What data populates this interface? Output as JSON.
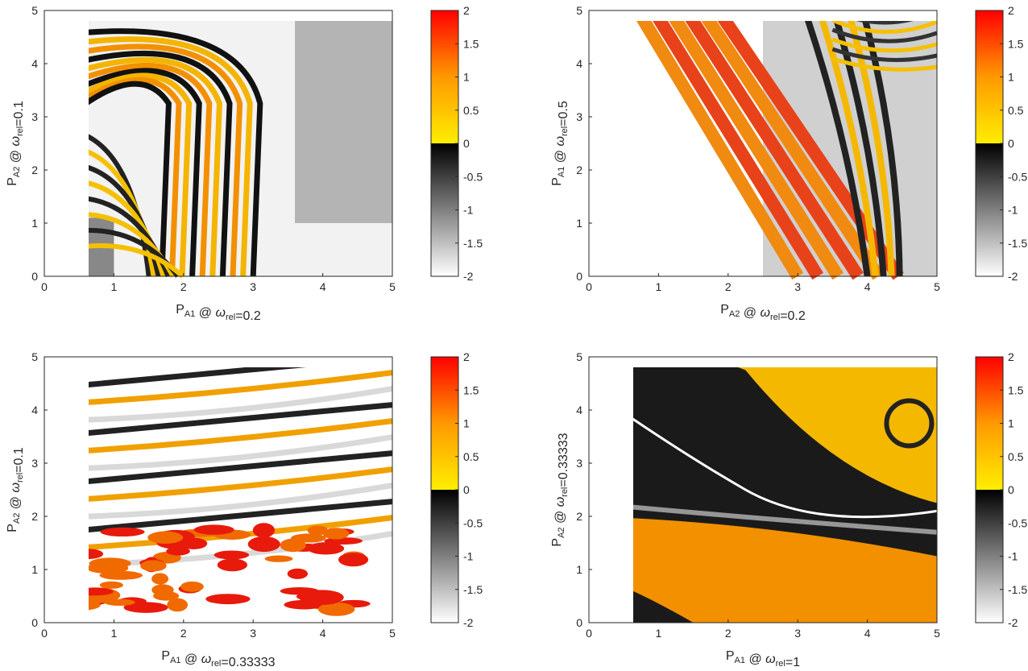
{
  "chart_data": [
    {
      "type": "heatmap",
      "xlabel": {
        "main": "P",
        "sub": "A1",
        "at": " @ ",
        "greek": "ω",
        "greek_sub": "rel",
        "val": "=0.2"
      },
      "ylabel": {
        "main": "P",
        "sub": "A2",
        "at": " @ ",
        "greek": "ω",
        "greek_sub": "rel",
        "val": "=0.1"
      },
      "xlim": [
        0,
        5
      ],
      "ylim": [
        0,
        5
      ],
      "xticks": [
        "0",
        "1",
        "2",
        "3",
        "4",
        "5"
      ],
      "yticks": [
        "0",
        "1",
        "2",
        "3",
        "4",
        "5"
      ],
      "colorbar": {
        "range": [
          -2,
          2
        ],
        "ticks": [
          "2",
          "1.5",
          "1",
          "0.5",
          "0",
          "-0.5",
          "-1",
          "-1.5",
          "-2"
        ]
      }
    },
    {
      "type": "heatmap",
      "xlabel": {
        "main": "P",
        "sub": "A2",
        "at": " @ ",
        "greek": "ω",
        "greek_sub": "rel",
        "val": "=0.2"
      },
      "ylabel": {
        "main": "P",
        "sub": "A1",
        "at": " @ ",
        "greek": "ω",
        "greek_sub": "rel",
        "val": "=0.5"
      },
      "xlim": [
        0,
        5
      ],
      "ylim": [
        0,
        5
      ],
      "xticks": [
        "0",
        "1",
        "2",
        "3",
        "4",
        "5"
      ],
      "yticks": [
        "0",
        "1",
        "2",
        "3",
        "4",
        "5"
      ],
      "colorbar": {
        "range": [
          -2,
          2
        ],
        "ticks": [
          "2",
          "1.5",
          "1",
          "0.5",
          "0",
          "-0.5",
          "-1",
          "-1.5",
          "-2"
        ]
      }
    },
    {
      "type": "heatmap",
      "xlabel": {
        "main": "P",
        "sub": "A1",
        "at": " @ ",
        "greek": "ω",
        "greek_sub": "rel",
        "val": "=0.33333"
      },
      "ylabel": {
        "main": "P",
        "sub": "A2",
        "at": " @ ",
        "greek": "ω",
        "greek_sub": "rel",
        "val": "=0.1"
      },
      "xlim": [
        0,
        5
      ],
      "ylim": [
        0,
        5
      ],
      "xticks": [
        "0",
        "1",
        "2",
        "3",
        "4",
        "5"
      ],
      "yticks": [
        "0",
        "1",
        "2",
        "3",
        "4",
        "5"
      ],
      "colorbar": {
        "range": [
          -2,
          2
        ],
        "ticks": [
          "2",
          "1.5",
          "1",
          "0.5",
          "0",
          "-0.5",
          "-1",
          "-1.5",
          "-2"
        ]
      }
    },
    {
      "type": "heatmap",
      "xlabel": {
        "main": "P",
        "sub": "A1",
        "at": " @ ",
        "greek": "ω",
        "greek_sub": "rel",
        "val": "=1"
      },
      "ylabel": {
        "main": "P",
        "sub": "A2",
        "at": " @ ",
        "greek": "ω",
        "greek_sub": "rel",
        "val": "=0.33333"
      },
      "xlim": [
        0,
        5
      ],
      "ylim": [
        0,
        5
      ],
      "xticks": [
        "0",
        "1",
        "2",
        "3",
        "4",
        "5"
      ],
      "yticks": [
        "0",
        "1",
        "2",
        "3",
        "4",
        "5"
      ],
      "colorbar": {
        "range": [
          -2,
          2
        ],
        "ticks": [
          "2",
          "1.5",
          "1",
          "0.5",
          "0",
          "-0.5",
          "-1",
          "-1.5",
          "-2"
        ]
      }
    }
  ],
  "colors": {
    "positive_high": "#ff0000",
    "positive_mid": "#ff9900",
    "positive_low": "#ffee00",
    "zero": "#000000",
    "negative_low": "#ffffff",
    "axis": "#262626"
  }
}
